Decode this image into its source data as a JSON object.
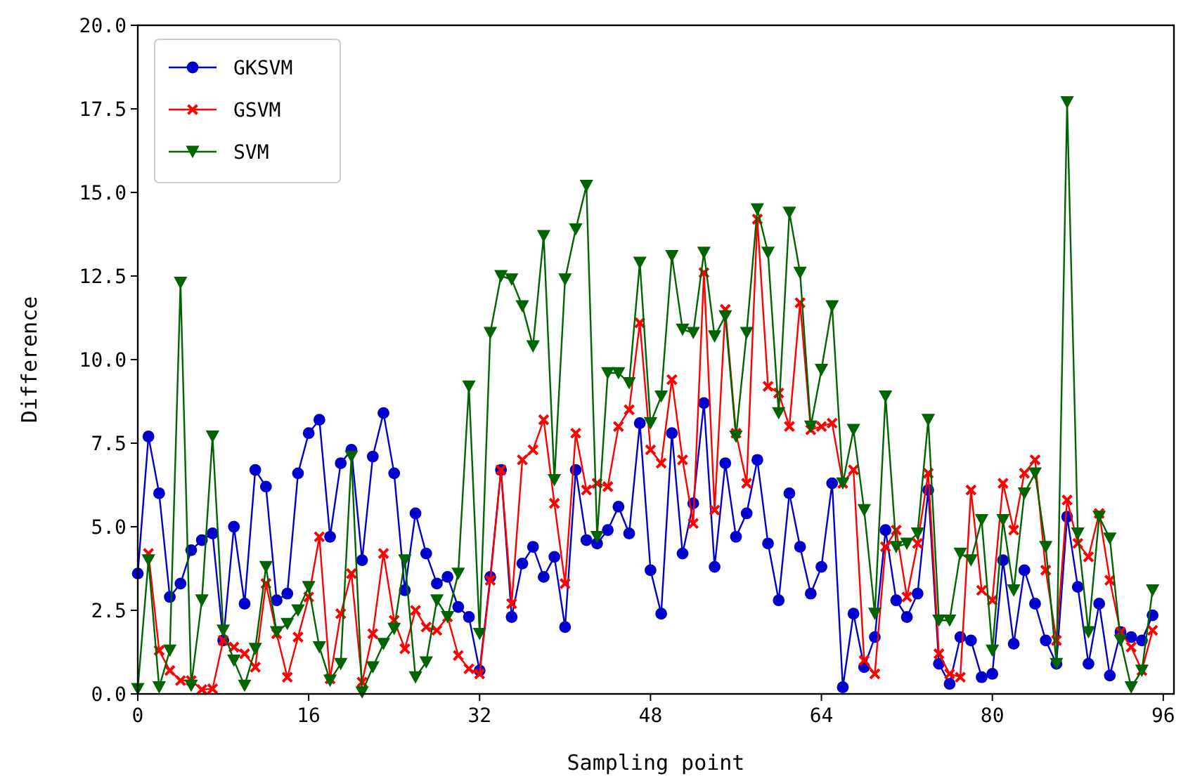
{
  "chart_data": {
    "type": "line",
    "xlabel": "Sampling point",
    "ylabel": "Difference",
    "x": [
      0,
      1,
      2,
      3,
      4,
      5,
      6,
      7,
      8,
      9,
      10,
      11,
      12,
      13,
      14,
      15,
      16,
      17,
      18,
      19,
      20,
      21,
      22,
      23,
      24,
      25,
      26,
      27,
      28,
      29,
      30,
      31,
      32,
      33,
      34,
      35,
      36,
      37,
      38,
      39,
      40,
      41,
      42,
      43,
      44,
      45,
      46,
      47,
      48,
      49,
      50,
      51,
      52,
      53,
      54,
      55,
      56,
      57,
      58,
      59,
      60,
      61,
      62,
      63,
      64,
      65,
      66,
      67,
      68,
      69,
      70,
      71,
      72,
      73,
      74,
      75,
      76,
      77,
      78,
      79,
      80,
      81,
      82,
      83,
      84,
      85,
      86,
      87,
      88,
      89,
      90,
      91,
      92,
      93,
      94,
      95
    ],
    "xlim": [
      0,
      97
    ],
    "xticks": [
      0,
      16,
      32,
      48,
      64,
      80,
      96
    ],
    "ylim": [
      0,
      20
    ],
    "yticks": [
      {
        "value": 0,
        "label": "0.0"
      },
      {
        "value": 2.5,
        "label": "2.5"
      },
      {
        "value": 5,
        "label": "5.0"
      },
      {
        "value": 7.5,
        "label": "7.5"
      },
      {
        "value": 10,
        "label": "10.0"
      },
      {
        "value": 12.5,
        "label": "12.5"
      },
      {
        "value": 15,
        "label": "15.0"
      },
      {
        "value": 17.5,
        "label": "17.5"
      },
      {
        "value": 20,
        "label": "20.0"
      }
    ],
    "legend": "top left",
    "grid": false,
    "series": [
      {
        "name": "GKSVM",
        "color": "#0000cc",
        "marker": "circle",
        "values": [
          3.6,
          7.7,
          6.0,
          2.9,
          3.3,
          4.3,
          4.6,
          4.8,
          1.6,
          5.0,
          2.7,
          6.7,
          6.2,
          2.8,
          3.0,
          6.6,
          7.8,
          8.2,
          4.7,
          6.9,
          7.3,
          4.0,
          7.1,
          8.4,
          6.6,
          3.1,
          5.4,
          4.2,
          3.3,
          3.5,
          2.6,
          2.3,
          0.7,
          3.5,
          6.7,
          2.3,
          3.9,
          4.4,
          3.5,
          4.1,
          2.0,
          6.7,
          4.6,
          4.5,
          4.9,
          5.6,
          4.8,
          8.1,
          3.7,
          2.4,
          7.8,
          4.2,
          5.7,
          8.7,
          3.8,
          6.9,
          4.7,
          5.4,
          7.0,
          4.5,
          2.8,
          6.0,
          4.4,
          3.0,
          3.8,
          6.3,
          0.2,
          2.4,
          0.8,
          1.7,
          4.9,
          2.8,
          2.3,
          3.0,
          6.1,
          0.9,
          0.3,
          1.7,
          1.6,
          0.5,
          0.6,
          4.0,
          1.5,
          3.7,
          2.7,
          1.6,
          0.9,
          5.3,
          3.2,
          0.9,
          2.7,
          0.55,
          1.85,
          1.7,
          1.6,
          2.35
        ]
      },
      {
        "name": "GSVM",
        "color": "#ff0000",
        "marker": "cross",
        "values": [
          null,
          4.2,
          1.3,
          0.7,
          0.4,
          0.4,
          0.13,
          0.15,
          1.6,
          1.4,
          1.2,
          0.8,
          3.3,
          1.8,
          0.5,
          1.7,
          2.9,
          4.7,
          0.45,
          2.4,
          3.6,
          0.35,
          1.8,
          4.2,
          2.2,
          1.35,
          2.5,
          2.0,
          1.9,
          2.3,
          1.15,
          0.75,
          0.6,
          3.4,
          6.7,
          2.7,
          7.0,
          7.3,
          8.2,
          5.7,
          3.3,
          7.8,
          6.1,
          6.3,
          6.2,
          8.0,
          8.5,
          11.1,
          7.3,
          6.9,
          9.4,
          7.0,
          5.1,
          12.6,
          5.5,
          11.5,
          7.8,
          6.3,
          14.2,
          9.2,
          9.0,
          8.0,
          11.7,
          7.9,
          8.0,
          8.1,
          6.3,
          6.7,
          1.0,
          0.6,
          4.4,
          4.9,
          2.9,
          4.5,
          6.6,
          1.2,
          0.6,
          0.5,
          6.1,
          3.1,
          2.8,
          6.3,
          4.9,
          6.6,
          7.0,
          3.7,
          1.6,
          5.8,
          4.5,
          4.1,
          5.4,
          3.4,
          1.85,
          1.4,
          0.7,
          1.9
        ]
      },
      {
        "name": "SVM",
        "color": "#006400",
        "marker": "triangle",
        "values": [
          0.15,
          4.0,
          0.2,
          1.3,
          12.3,
          0.25,
          2.8,
          7.7,
          1.9,
          1.0,
          0.25,
          1.35,
          3.8,
          1.85,
          2.1,
          2.5,
          3.2,
          1.4,
          0.4,
          0.9,
          7.1,
          0.05,
          0.8,
          1.5,
          1.95,
          4.0,
          0.5,
          0.95,
          2.8,
          2.3,
          3.6,
          9.2,
          1.8,
          10.8,
          12.5,
          12.4,
          11.6,
          10.4,
          13.7,
          6.4,
          12.4,
          13.9,
          15.2,
          4.7,
          9.6,
          9.6,
          9.3,
          12.9,
          8.1,
          8.9,
          13.1,
          10.9,
          10.8,
          13.2,
          10.7,
          11.3,
          7.7,
          10.8,
          14.5,
          13.2,
          8.4,
          14.4,
          12.6,
          8.0,
          9.7,
          11.6,
          6.3,
          7.9,
          5.5,
          2.4,
          8.9,
          4.4,
          4.5,
          4.8,
          8.2,
          2.2,
          2.2,
          4.2,
          4.0,
          5.2,
          1.3,
          5.2,
          3.1,
          6.0,
          6.6,
          4.4,
          0.9,
          17.7,
          4.8,
          1.85,
          5.3,
          4.65,
          1.6,
          0.2,
          0.7,
          3.1
        ]
      }
    ]
  }
}
